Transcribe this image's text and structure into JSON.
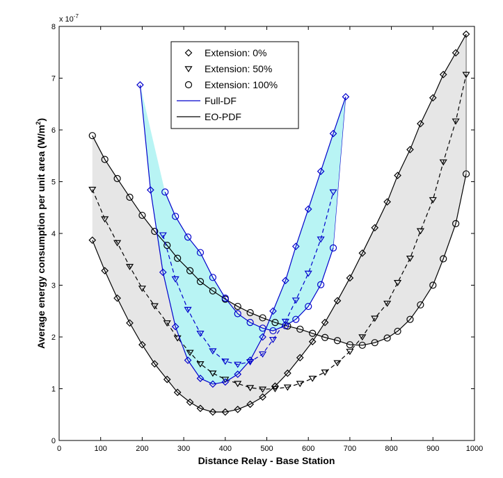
{
  "chart_data": {
    "type": "line",
    "title": "",
    "xlabel": "Distance Relay - Base Station",
    "ylabel_main": "Average energy consumption per unit area (W/m",
    "ylabel_sup": "2",
    "ylabel_close": ")",
    "xlim": [
      0,
      1000
    ],
    "ylim": [
      0,
      8
    ],
    "xticks": [
      0,
      100,
      200,
      300,
      400,
      500,
      600,
      700,
      800,
      900,
      1000
    ],
    "yticks": [
      0,
      1,
      2,
      3,
      4,
      5,
      6,
      7,
      8
    ],
    "y_scale_base": "x 10",
    "y_scale_exp": "-7",
    "grid": false,
    "legend_position": "top-center",
    "colors": {
      "full_df": "#0000cc",
      "eo_pdf": "#000000",
      "full_df_fill": "#b8f4f4",
      "eo_pdf_fill": "#e6e6e6"
    },
    "legend": [
      {
        "label": "Extension: 0%",
        "marker": "diamond",
        "line": "none"
      },
      {
        "label": "Extension: 50%",
        "marker": "triangle-down",
        "line": "none"
      },
      {
        "label": "Extension: 100%",
        "marker": "circle",
        "line": "none"
      },
      {
        "label": "Full-DF",
        "marker": "none",
        "line": "#0000cc"
      },
      {
        "label": "EO-PDF",
        "marker": "none",
        "line": "#000000"
      }
    ],
    "series": [
      {
        "name": "EO-PDF Extension: 0%",
        "scheme": "eo_pdf",
        "marker": "diamond",
        "dash": false,
        "x": [
          80,
          110,
          140,
          170,
          200,
          230,
          260,
          285,
          315,
          340,
          370,
          400,
          430,
          460,
          490,
          520,
          550,
          580,
          610,
          640,
          670,
          700,
          730,
          760,
          790,
          815,
          845,
          870,
          900,
          925,
          955,
          980
        ],
        "y": [
          3.87,
          3.28,
          2.75,
          2.27,
          1.85,
          1.48,
          1.18,
          0.93,
          0.74,
          0.62,
          0.55,
          0.55,
          0.6,
          0.7,
          0.84,
          1.05,
          1.3,
          1.6,
          1.91,
          2.28,
          2.7,
          3.14,
          3.62,
          4.11,
          4.61,
          5.12,
          5.62,
          6.12,
          6.62,
          7.07,
          7.49,
          7.85
        ]
      },
      {
        "name": "EO-PDF Extension: 50%",
        "scheme": "eo_pdf",
        "marker": "triangle-down",
        "dash": true,
        "x": [
          80,
          110,
          140,
          170,
          200,
          230,
          260,
          285,
          315,
          340,
          370,
          400,
          430,
          460,
          490,
          520,
          550,
          580,
          610,
          640,
          670,
          700,
          730,
          760,
          790,
          815,
          845,
          870,
          900,
          925,
          955,
          980
        ],
        "y": [
          4.85,
          4.28,
          3.82,
          3.36,
          2.94,
          2.6,
          2.27,
          1.98,
          1.7,
          1.48,
          1.3,
          1.18,
          1.1,
          1.02,
          0.99,
          1.0,
          1.03,
          1.1,
          1.2,
          1.32,
          1.5,
          1.72,
          2.0,
          2.36,
          2.65,
          3.05,
          3.52,
          4.05,
          4.65,
          5.38,
          6.17,
          7.07
        ]
      },
      {
        "name": "EO-PDF Extension: 100%",
        "scheme": "eo_pdf",
        "marker": "circle",
        "dash": false,
        "x": [
          80,
          110,
          140,
          170,
          200,
          230,
          260,
          285,
          315,
          340,
          370,
          400,
          430,
          460,
          490,
          520,
          550,
          580,
          610,
          640,
          670,
          700,
          730,
          760,
          790,
          815,
          845,
          870,
          900,
          925,
          955,
          980
        ],
        "y": [
          5.89,
          5.43,
          5.06,
          4.7,
          4.35,
          4.04,
          3.77,
          3.52,
          3.28,
          3.07,
          2.89,
          2.73,
          2.59,
          2.47,
          2.37,
          2.28,
          2.21,
          2.15,
          2.07,
          1.99,
          1.93,
          1.85,
          1.84,
          1.89,
          1.98,
          2.11,
          2.34,
          2.62,
          3.0,
          3.51,
          4.19,
          5.15
        ]
      },
      {
        "name": "Full-DF Extension: 0%",
        "scheme": "full_df",
        "marker": "diamond",
        "dash": false,
        "x": [
          195,
          220,
          250,
          280,
          310,
          340,
          370,
          400,
          430,
          460,
          490,
          515,
          545,
          570,
          600,
          630,
          660,
          690
        ],
        "y": [
          6.87,
          4.84,
          3.25,
          2.2,
          1.55,
          1.2,
          1.09,
          1.13,
          1.28,
          1.55,
          2.0,
          2.5,
          3.09,
          3.75,
          4.47,
          5.2,
          5.93,
          6.64
        ]
      },
      {
        "name": "Full-DF Extension: 50%",
        "scheme": "full_df",
        "marker": "triangle-down",
        "dash": true,
        "x": [
          250,
          280,
          310,
          340,
          370,
          400,
          430,
          460,
          490,
          515,
          545,
          570,
          600,
          630,
          660
        ],
        "y": [
          3.97,
          3.12,
          2.53,
          2.07,
          1.73,
          1.53,
          1.47,
          1.52,
          1.67,
          1.95,
          2.3,
          2.71,
          3.23,
          3.89,
          4.8
        ]
      },
      {
        "name": "Full-DF Extension: 100%",
        "scheme": "full_df",
        "marker": "circle",
        "dash": false,
        "x": [
          255,
          280,
          310,
          340,
          370,
          400,
          430,
          460,
          490,
          515,
          545,
          570,
          600,
          630,
          660
        ],
        "y": [
          4.8,
          4.33,
          3.93,
          3.63,
          3.15,
          2.75,
          2.45,
          2.28,
          2.17,
          2.12,
          2.22,
          2.34,
          2.59,
          3.01,
          3.72
        ]
      }
    ]
  }
}
